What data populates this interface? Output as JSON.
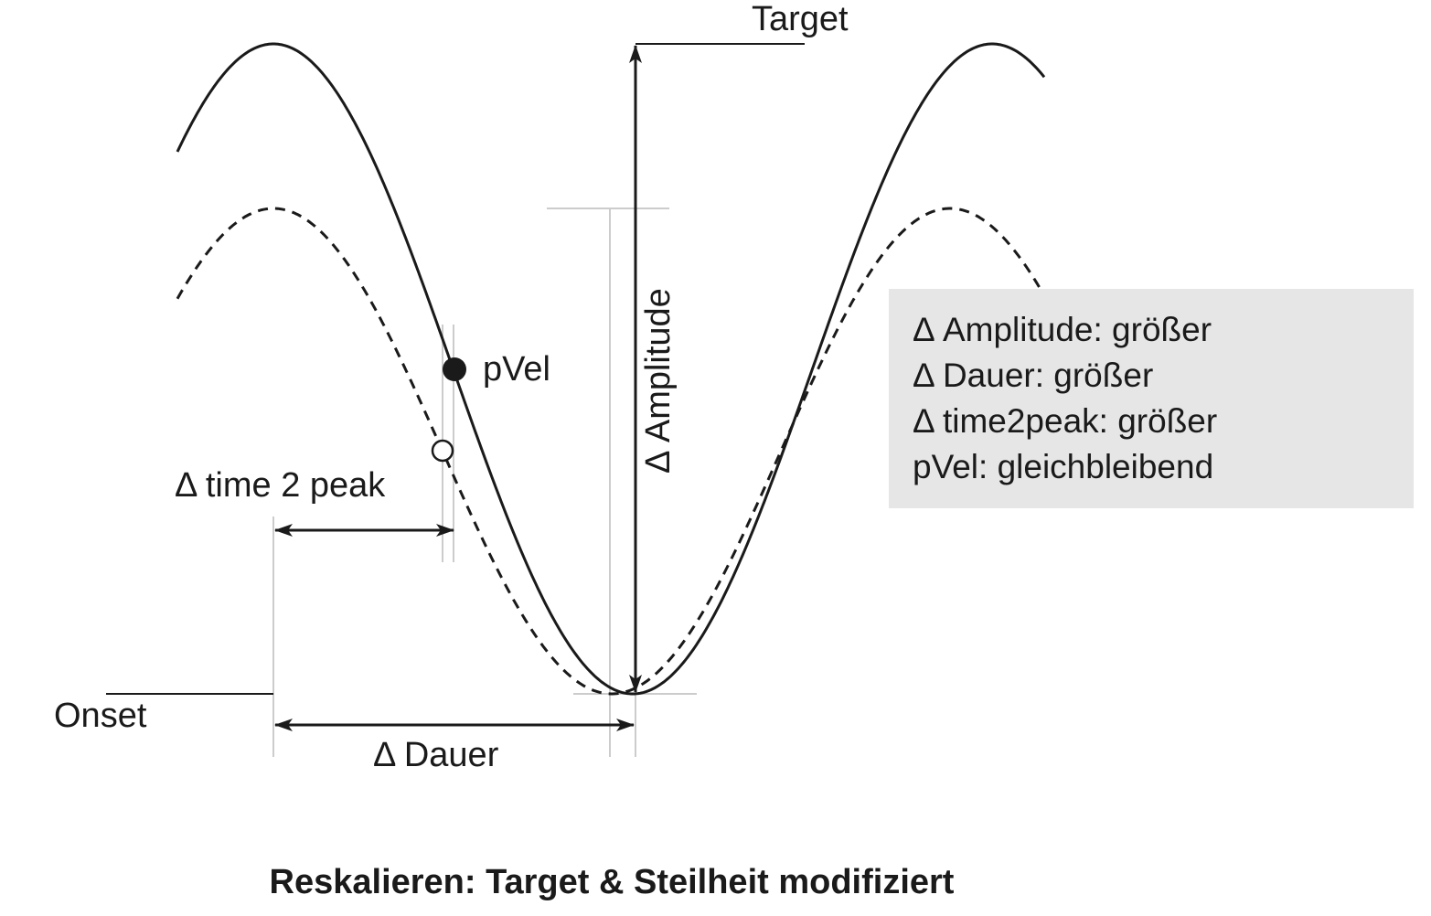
{
  "labels": {
    "target": "Target",
    "onset": "Onset",
    "pvel": "pVel",
    "time2peak": "Δ time 2 peak",
    "dauer": "Δ Dauer",
    "amplitude": "Δ Amplitude"
  },
  "info_box": {
    "lines": [
      "Δ Amplitude: größer",
      "Δ Dauer: größer",
      "Δ time2peak: größer",
      "pVel: gleichbleibend"
    ],
    "background": "#e6e6e6"
  },
  "caption": "Reskalieren: Target & Steilheit modifiziert",
  "colors": {
    "curve": "#1a1a1a",
    "guide": "#cccccc"
  }
}
